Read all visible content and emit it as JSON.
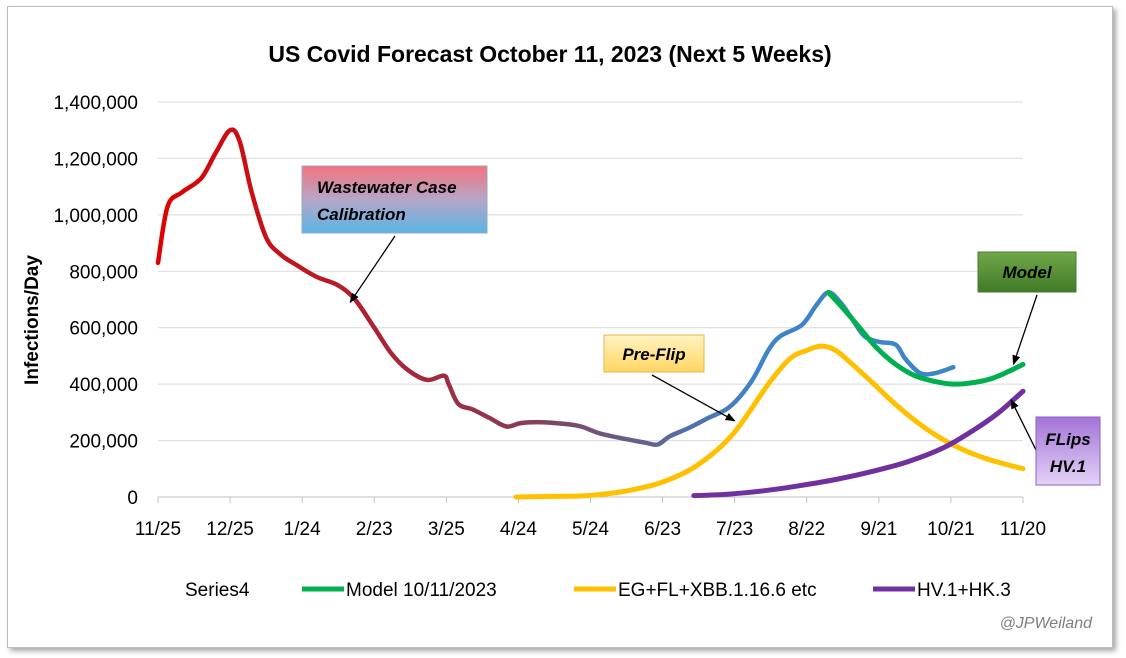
{
  "chart_data": {
    "type": "line",
    "title": "US Covid Forecast October 11, 2023 (Next 5 Weeks)",
    "ylabel": "Infections/Day",
    "xlabel": "",
    "ylim": [
      0,
      1400000
    ],
    "yticks": [
      "0",
      "200,000",
      "400,000",
      "600,000",
      "800,000",
      "1,000,000",
      "1,200,000",
      "1,400,000"
    ],
    "ytick_values": [
      0,
      200000,
      400000,
      600000,
      800000,
      1000000,
      1200000,
      1400000
    ],
    "xlim": [
      "2022-11-25",
      "2023-11-20"
    ],
    "xticks": [
      "11/25",
      "12/25",
      "1/24",
      "2/23",
      "3/25",
      "4/24",
      "5/24",
      "6/23",
      "7/23",
      "8/22",
      "9/21",
      "10/21",
      "11/20"
    ],
    "xtick_dates": [
      "2022-11-25",
      "2022-12-25",
      "2023-01-24",
      "2023-02-23",
      "2023-03-25",
      "2023-04-24",
      "2023-05-24",
      "2023-06-23",
      "2023-07-23",
      "2023-08-22",
      "2023-09-21",
      "2023-10-21",
      "2023-11-20"
    ],
    "grid": "horizontal",
    "legend_position": "bottom",
    "series": [
      {
        "name": "Series4",
        "color": "#e00000",
        "gradient_colors": [
          "#e00000",
          "#8b3a52",
          "#3d85c6"
        ],
        "points": [
          [
            "2022-11-25",
            830000
          ],
          [
            "2022-11-29",
            1030000
          ],
          [
            "2022-12-05",
            1080000
          ],
          [
            "2022-12-13",
            1130000
          ],
          [
            "2022-12-19",
            1220000
          ],
          [
            "2022-12-25",
            1300000
          ],
          [
            "2022-12-29",
            1260000
          ],
          [
            "2023-01-03",
            1080000
          ],
          [
            "2023-01-09",
            920000
          ],
          [
            "2023-01-15",
            860000
          ],
          [
            "2023-01-22",
            820000
          ],
          [
            "2023-01-30",
            780000
          ],
          [
            "2023-02-08",
            750000
          ],
          [
            "2023-02-15",
            700000
          ],
          [
            "2023-02-23",
            600000
          ],
          [
            "2023-03-02",
            510000
          ],
          [
            "2023-03-09",
            450000
          ],
          [
            "2023-03-17",
            415000
          ],
          [
            "2023-03-24",
            430000
          ],
          [
            "2023-03-26",
            400000
          ],
          [
            "2023-03-30",
            330000
          ],
          [
            "2023-04-05",
            310000
          ],
          [
            "2023-04-12",
            280000
          ],
          [
            "2023-04-19",
            250000
          ],
          [
            "2023-04-25",
            262000
          ],
          [
            "2023-05-03",
            265000
          ],
          [
            "2023-05-12",
            260000
          ],
          [
            "2023-05-20",
            250000
          ],
          [
            "2023-05-28",
            225000
          ],
          [
            "2023-06-08",
            205000
          ],
          [
            "2023-06-16",
            192000
          ],
          [
            "2023-06-21",
            186000
          ],
          [
            "2023-06-26",
            215000
          ],
          [
            "2023-07-04",
            245000
          ],
          [
            "2023-07-12",
            280000
          ],
          [
            "2023-07-21",
            320000
          ],
          [
            "2023-07-30",
            410000
          ],
          [
            "2023-08-06",
            520000
          ],
          [
            "2023-08-11",
            570000
          ],
          [
            "2023-08-20",
            610000
          ],
          [
            "2023-08-26",
            680000
          ],
          [
            "2023-08-31",
            725000
          ],
          [
            "2023-09-05",
            690000
          ],
          [
            "2023-09-10",
            630000
          ],
          [
            "2023-09-15",
            570000
          ],
          [
            "2023-09-21",
            550000
          ],
          [
            "2023-09-28",
            540000
          ],
          [
            "2023-10-02",
            490000
          ],
          [
            "2023-10-08",
            440000
          ],
          [
            "2023-10-14",
            438000
          ],
          [
            "2023-10-22",
            460000
          ]
        ]
      },
      {
        "name": "Model 10/11/2023",
        "color": "#00b050",
        "points": [
          [
            "2023-08-31",
            725000
          ],
          [
            "2023-09-06",
            670000
          ],
          [
            "2023-09-13",
            600000
          ],
          [
            "2023-09-20",
            530000
          ],
          [
            "2023-09-28",
            470000
          ],
          [
            "2023-10-06",
            430000
          ],
          [
            "2023-10-14",
            410000
          ],
          [
            "2023-10-22",
            400000
          ],
          [
            "2023-10-30",
            405000
          ],
          [
            "2023-11-07",
            420000
          ],
          [
            "2023-11-14",
            445000
          ],
          [
            "2023-11-20",
            470000
          ]
        ]
      },
      {
        "name": "EG+FL+XBB.1.16.6 etc",
        "color": "#ffc000",
        "points": [
          [
            "2023-04-23",
            0
          ],
          [
            "2023-05-08",
            2000
          ],
          [
            "2023-05-23",
            5000
          ],
          [
            "2023-06-07",
            20000
          ],
          [
            "2023-06-22",
            50000
          ],
          [
            "2023-07-07",
            110000
          ],
          [
            "2023-07-22",
            220000
          ],
          [
            "2023-08-06",
            400000
          ],
          [
            "2023-08-15",
            490000
          ],
          [
            "2023-08-22",
            520000
          ],
          [
            "2023-08-28",
            535000
          ],
          [
            "2023-09-03",
            520000
          ],
          [
            "2023-09-10",
            470000
          ],
          [
            "2023-09-19",
            400000
          ],
          [
            "2023-09-29",
            320000
          ],
          [
            "2023-10-11",
            240000
          ],
          [
            "2023-10-23",
            180000
          ],
          [
            "2023-11-05",
            135000
          ],
          [
            "2023-11-20",
            100000
          ]
        ]
      },
      {
        "name": "HV.1+HK.3",
        "color": "#7030a0",
        "points": [
          [
            "2023-07-06",
            5000
          ],
          [
            "2023-07-20",
            10000
          ],
          [
            "2023-08-04",
            22000
          ],
          [
            "2023-08-19",
            40000
          ],
          [
            "2023-09-03",
            62000
          ],
          [
            "2023-09-18",
            90000
          ],
          [
            "2023-10-03",
            125000
          ],
          [
            "2023-10-18",
            175000
          ],
          [
            "2023-10-31",
            240000
          ],
          [
            "2023-11-10",
            300000
          ],
          [
            "2023-11-20",
            375000
          ]
        ]
      }
    ],
    "annotations": [
      {
        "id": "wastewater",
        "text_lines": [
          "Wastewater Case",
          "Calibration"
        ],
        "arrow_to": [
          "2023-02-13",
          690000
        ]
      },
      {
        "id": "preflip",
        "text_lines": [
          "Pre-Flip"
        ],
        "arrow_to": [
          "2023-07-23",
          270000
        ]
      },
      {
        "id": "model",
        "text_lines": [
          "Model"
        ],
        "arrow_to": [
          "2023-11-16",
          470000
        ]
      },
      {
        "id": "flips",
        "text_lines": [
          "FLips",
          "HV.1"
        ],
        "arrow_to": [
          "2023-11-15",
          345000
        ]
      }
    ],
    "credit": "@JPWeiland"
  }
}
